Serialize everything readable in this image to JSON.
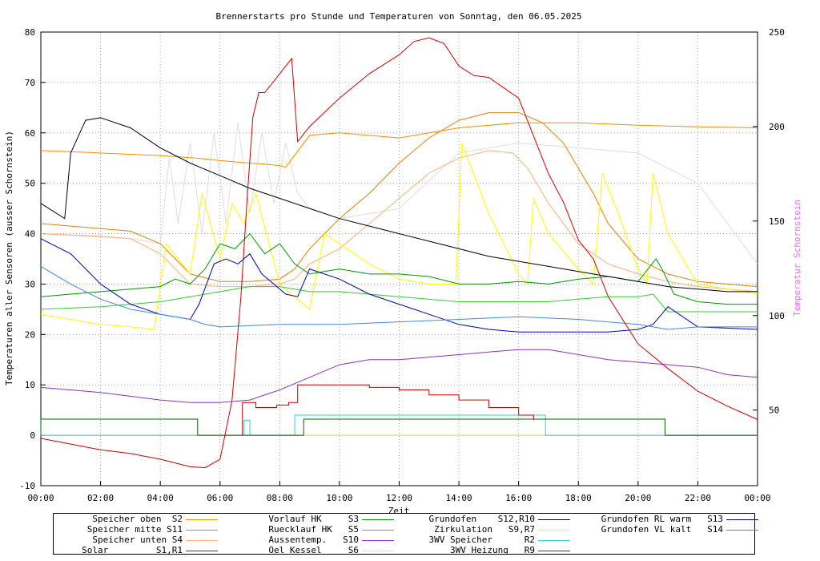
{
  "chart_data": {
    "type": "line",
    "title": "Brennerstarts pro Stunde und Temperaturen von Sonntag, den 06.05.2025",
    "xlabel": "Zeit",
    "ylabel": "Temperaturen aller Sensoren (ausser Schornstein)",
    "y2label": "Temperatur Schornstein",
    "ylim": [
      -10,
      80
    ],
    "y2lim": [
      10,
      250
    ],
    "xlim": [
      0,
      24
    ],
    "xticks": [
      "00:00",
      "02:00",
      "04:00",
      "06:00",
      "08:00",
      "10:00",
      "12:00",
      "14:00",
      "16:00",
      "18:00",
      "20:00",
      "22:00",
      "00:00"
    ],
    "yticks": [
      "-10",
      "0",
      "10",
      "20",
      "30",
      "40",
      "50",
      "60",
      "70",
      "80"
    ],
    "y2ticks": [
      "50",
      "100",
      "150",
      "200",
      "250"
    ],
    "grid": true,
    "legend_position": "bottom",
    "series": [
      {
        "name": "Speicher oben  S2",
        "color": "#ff8c00",
        "x": [
          0,
          2,
          4,
          5.2,
          6,
          7,
          7.5,
          8,
          8.2,
          9,
          10,
          12,
          14,
          16,
          18,
          20,
          22,
          24
        ],
        "y": [
          56.5,
          56,
          55.5,
          55,
          54.5,
          54,
          53.8,
          53.5,
          53.2,
          59.5,
          60,
          59,
          61,
          62,
          62,
          61.5,
          61.2,
          61
        ]
      },
      {
        "name": "Speicher mitte S11",
        "color": "#e08010",
        "x": [
          0,
          2,
          3,
          4,
          5,
          6,
          7,
          8,
          8.5,
          9,
          10,
          11,
          12,
          13,
          14,
          15,
          16,
          16.8,
          17.5,
          18.5,
          19,
          20,
          21,
          22,
          24
        ],
        "y": [
          42,
          41,
          40.5,
          38,
          32,
          30.5,
          30.5,
          31,
          33,
          37,
          43,
          48,
          54,
          59,
          62.5,
          64,
          64,
          62,
          58,
          48,
          42,
          35,
          32,
          30.5,
          29.5
        ]
      },
      {
        "name": "Speicher unten S4",
        "color": "#ffb07a",
        "x": [
          0,
          2,
          3,
          4,
          5,
          6,
          7,
          8,
          8.5,
          9,
          10,
          11,
          12,
          13,
          14,
          15,
          15.8,
          16.3,
          17,
          18,
          19,
          20,
          21,
          22,
          24
        ],
        "y": [
          40,
          39.5,
          39,
          36,
          30,
          29.5,
          29.5,
          30,
          31,
          34,
          37,
          42,
          47,
          52,
          55,
          56.5,
          56,
          53,
          46,
          38,
          34,
          32,
          30.5,
          29.5,
          28.5
        ]
      },
      {
        "name": "Solar          S1,R1",
        "color": "#cc0000",
        "axis": "y2",
        "x": [
          0,
          1,
          2,
          3,
          4,
          5,
          5.5,
          6,
          6.4,
          6.7,
          6.9,
          7.1,
          7.3,
          7.5,
          8,
          8.4,
          8.6,
          9,
          10,
          11,
          12,
          12.5,
          13,
          13.5,
          14,
          14.5,
          15,
          16,
          16.5,
          17,
          17.5,
          18,
          18.5,
          19,
          20,
          21,
          22,
          23,
          24
        ],
        "y": [
          35,
          32,
          29,
          27,
          24,
          20,
          19.5,
          24,
          55,
          110,
          160,
          205,
          218,
          218,
          228,
          236,
          192,
          200,
          215,
          228,
          238,
          245,
          247,
          244,
          232,
          227,
          226,
          215,
          195,
          175,
          160,
          140,
          130,
          110,
          85,
          72,
          60,
          52,
          45
        ]
      },
      {
        "name": "Vorlauf HK     S3",
        "color": "#009900",
        "x": [
          0,
          1,
          2,
          3,
          4,
          4.5,
          5,
          5.5,
          6,
          6.5,
          7,
          7.5,
          8,
          8.5,
          9,
          10,
          11,
          12,
          13,
          14,
          15,
          16,
          17,
          18,
          19,
          20,
          20.6,
          20.8,
          21.2,
          22,
          23,
          24
        ],
        "y": [
          27.5,
          28,
          28.5,
          29,
          29.5,
          31,
          30,
          33,
          38,
          37,
          40,
          36,
          38,
          34,
          32,
          33,
          32,
          32,
          31.5,
          30,
          30,
          30.5,
          30,
          31,
          31.5,
          30.5,
          35,
          33,
          28,
          26.5,
          26,
          26
        ]
      },
      {
        "name": "Ruecklauf HK   S5",
        "color": "#33cc33",
        "x": [
          0,
          2,
          4,
          5,
          6,
          7,
          8,
          9,
          10,
          12,
          14,
          16,
          17,
          18,
          19,
          20,
          20.5,
          21,
          22,
          24
        ],
        "y": [
          25,
          25.5,
          26.5,
          27.5,
          28.5,
          29.5,
          29.5,
          28.5,
          28.5,
          27.5,
          26.5,
          26.5,
          26.5,
          27,
          27.5,
          27.5,
          28,
          24.5,
          24.5,
          24.5
        ]
      },
      {
        "name": "Aussentemp.    S10",
        "color": "#8833cc",
        "x": [
          0,
          2,
          4,
          5,
          6,
          7,
          8,
          9,
          10,
          11,
          12,
          13,
          14,
          15,
          16,
          17,
          18,
          19,
          20,
          21,
          22,
          23,
          24
        ],
        "y": [
          9.5,
          8.5,
          7,
          6.5,
          6.5,
          7,
          9,
          11.5,
          14,
          15,
          15,
          15.5,
          16,
          16.5,
          17,
          17,
          16,
          15,
          14.5,
          14,
          13.5,
          12,
          11.5
        ]
      },
      {
        "name": "Oel Kessel     S6",
        "color": "#dddddd",
        "x": [
          0,
          3,
          4,
          4.3,
          4.6,
          5,
          5.4,
          5.8,
          6.2,
          6.6,
          7,
          7.4,
          7.8,
          8.2,
          8.6,
          9,
          10,
          12,
          14,
          16,
          18,
          20,
          21,
          22,
          23,
          24
        ],
        "y": [
          40,
          39,
          38,
          55,
          42,
          58,
          40,
          60,
          42,
          62,
          44,
          60,
          46,
          58,
          48,
          45,
          43,
          45,
          56,
          58,
          57,
          56,
          53,
          50,
          42,
          34
        ]
      },
      {
        "name": "Grundofen      S12,R10",
        "color": "#000000",
        "x": [
          0,
          0.8,
          1,
          1.5,
          2,
          3,
          4,
          5,
          6,
          7,
          8,
          9,
          10,
          11,
          12,
          13,
          14,
          15,
          16,
          17,
          18,
          19,
          20,
          21,
          22,
          23,
          24
        ],
        "y": [
          46,
          43,
          56,
          62.5,
          63,
          61,
          57,
          54,
          51.5,
          49,
          47,
          45,
          43,
          41.5,
          40,
          38.5,
          37,
          35.5,
          34.5,
          33.5,
          32.5,
          31.5,
          30.5,
          29.5,
          29,
          28.5,
          28.5
        ]
      },
      {
        "name": "Zirkulation    S9,R7",
        "color": "#ffff00",
        "x": [
          0,
          2,
          3,
          3.8,
          4.2,
          5,
          5.4,
          6,
          6.4,
          6.8,
          7.2,
          8,
          9,
          9.5,
          10,
          11,
          12,
          13,
          13.9,
          14.1,
          15,
          16,
          16.3,
          16.5,
          17,
          18,
          18.5,
          18.8,
          19.4,
          20,
          20.3,
          20.5,
          21,
          22,
          24
        ],
        "y": [
          24,
          22,
          21.5,
          21,
          38,
          32,
          48,
          35,
          46,
          42,
          48,
          30,
          25,
          40,
          38,
          34,
          31,
          30,
          30,
          58,
          44,
          32,
          30,
          47,
          40,
          33,
          30,
          52,
          43,
          33,
          30,
          52,
          40,
          30,
          28
        ]
      },
      {
        "name": "3WV Speicher   R2",
        "color": "#33cccc",
        "x": [
          0,
          6.8,
          6.8,
          7.0,
          7.0,
          8.5,
          8.5,
          16.9,
          16.9,
          24
        ],
        "y": [
          0,
          0,
          3,
          3,
          0,
          0,
          4,
          4,
          0,
          0
        ]
      },
      {
        "name": "3WV Heizung    R9",
        "color": "#006600",
        "x": [
          0,
          0,
          5.25,
          5.25,
          8.8,
          8.8,
          20.9,
          20.9,
          24
        ],
        "y": [
          0,
          3.2,
          3.2,
          0,
          0,
          3.2,
          3.2,
          0,
          0
        ]
      },
      {
        "name": "Grundofen RL warm   S13",
        "color": "#0000bb",
        "x": [
          0,
          1,
          2,
          3,
          4,
          5,
          5.3,
          5.8,
          6.2,
          6.6,
          7,
          7.4,
          7.8,
          8.2,
          8.6,
          9,
          10,
          11,
          12,
          13,
          14,
          15,
          16,
          17,
          18,
          19,
          20,
          20.5,
          21,
          22,
          24
        ],
        "y": [
          39,
          36,
          30,
          26,
          24,
          23,
          26,
          34,
          35,
          34,
          36,
          32,
          30,
          28,
          27.5,
          33,
          31,
          28,
          26,
          24,
          22,
          21,
          20.5,
          20.5,
          20.5,
          20.5,
          21,
          22,
          25.5,
          21.5,
          21
        ]
      },
      {
        "name": "Grundofen VL kalt   S14",
        "color": "#4488dd",
        "x": [
          0,
          1,
          2,
          3,
          4,
          5,
          5.5,
          6,
          8,
          10,
          12,
          14,
          16,
          18,
          20,
          21,
          22,
          24
        ],
        "y": [
          33.5,
          30,
          27,
          25,
          24,
          23,
          22,
          21.5,
          22,
          22,
          22.5,
          23,
          23.5,
          23,
          22,
          21,
          21.5,
          21.5
        ]
      }
    ],
    "burner_starts": {
      "name": "Brennerstarts",
      "color": "#cc0000",
      "x": [
        6.75,
        7.2,
        7.5,
        7.9,
        8.3,
        8.6,
        9,
        10,
        11,
        12,
        13,
        14,
        15,
        16,
        16.5
      ],
      "y": [
        6.5,
        5.5,
        5.5,
        6,
        6.5,
        10,
        10,
        10,
        9.5,
        9,
        8,
        7,
        5.5,
        4,
        3
      ]
    }
  },
  "legend": {
    "items": [
      {
        "label": "Speicher oben  S2",
        "color": "#ff8c00"
      },
      {
        "label": "Speicher mitte S11",
        "color": "#e08010"
      },
      {
        "label": "Speicher unten S4",
        "color": "#ffb07a"
      },
      {
        "label": "Solar         S1,R1",
        "color": "#cc0000"
      },
      {
        "label": "Vorlauf HK     S3",
        "color": "#009900"
      },
      {
        "label": "Ruecklauf HK   S5",
        "color": "#33cc33"
      },
      {
        "label": "Aussentemp.   S10",
        "color": "#8833cc"
      },
      {
        "label": "Oel Kessel     S6",
        "color": "#dddddd"
      },
      {
        "label": "Grundofen    S12,R10",
        "color": "#000000"
      },
      {
        "label": "Zirkulation   S9,R7",
        "color": "#ffff00"
      },
      {
        "label": "3WV Speicher      R2",
        "color": "#33cccc"
      },
      {
        "label": "3WV Heizung   R9",
        "color": "#006600"
      },
      {
        "label": "Grundofen RL warm   S13",
        "color": "#0000bb"
      },
      {
        "label": "Grundofen VL kalt   S14",
        "color": "#4488dd"
      }
    ]
  }
}
